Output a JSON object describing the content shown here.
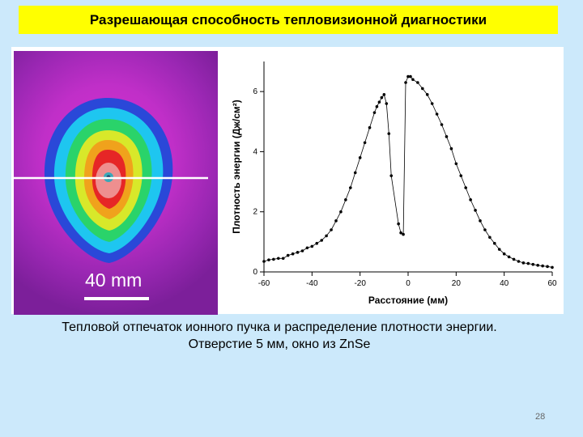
{
  "slide": {
    "title": "Разрешающая способность тепловизионной диагностики",
    "caption_line1": "Тепловой отпечаток ионного пучка и распределение плотности энергии.",
    "caption_line2": "Отверстие 5 мм, окно из ZnSe",
    "page_number": "28"
  },
  "colors": {
    "title_bg": "#ffff00",
    "slide_bg": "#cce9fb"
  },
  "thermal_image": {
    "scale_label": "40 mm"
  },
  "chart_data": {
    "type": "scatter",
    "xlabel": "Расстояние (мм)",
    "ylabel": "Плотность энергии (Дж/см²)",
    "xlim": [
      -60,
      60
    ],
    "ylim": [
      0,
      7
    ],
    "xticks": [
      "-60",
      "-40",
      "-20",
      "0",
      "20",
      "40",
      "60"
    ],
    "yticks": [
      "0",
      "2",
      "4",
      "6"
    ],
    "grid": false,
    "series": [
      {
        "x": [
          -60,
          -58,
          -56,
          -54,
          -52,
          -50,
          -48,
          -46,
          -44,
          -42,
          -40,
          -38,
          -36,
          -34,
          -32,
          -30,
          -28,
          -26,
          -24,
          -22,
          -20,
          -18,
          -16,
          -14,
          -13,
          -12,
          -11,
          -10,
          -9,
          -8,
          -7,
          -4,
          -3,
          -2,
          -1,
          0,
          1,
          2,
          4,
          6,
          8,
          10,
          12,
          14,
          16,
          18,
          20,
          22,
          24,
          26,
          28,
          30,
          32,
          34,
          36,
          38,
          40,
          42,
          44,
          46,
          48,
          50,
          52,
          54,
          56,
          58,
          60
        ],
        "y": [
          0.35,
          0.4,
          0.42,
          0.45,
          0.45,
          0.55,
          0.6,
          0.65,
          0.7,
          0.8,
          0.85,
          0.95,
          1.05,
          1.2,
          1.4,
          1.7,
          2.0,
          2.4,
          2.8,
          3.3,
          3.8,
          4.3,
          4.8,
          5.3,
          5.5,
          5.65,
          5.8,
          5.9,
          5.6,
          4.6,
          3.2,
          1.6,
          1.3,
          1.25,
          6.3,
          6.5,
          6.5,
          6.4,
          6.3,
          6.1,
          5.9,
          5.6,
          5.25,
          4.9,
          4.5,
          4.1,
          3.6,
          3.2,
          2.8,
          2.4,
          2.05,
          1.7,
          1.4,
          1.15,
          0.95,
          0.75,
          0.6,
          0.5,
          0.42,
          0.35,
          0.3,
          0.28,
          0.25,
          0.22,
          0.2,
          0.18,
          0.15
        ]
      }
    ]
  }
}
